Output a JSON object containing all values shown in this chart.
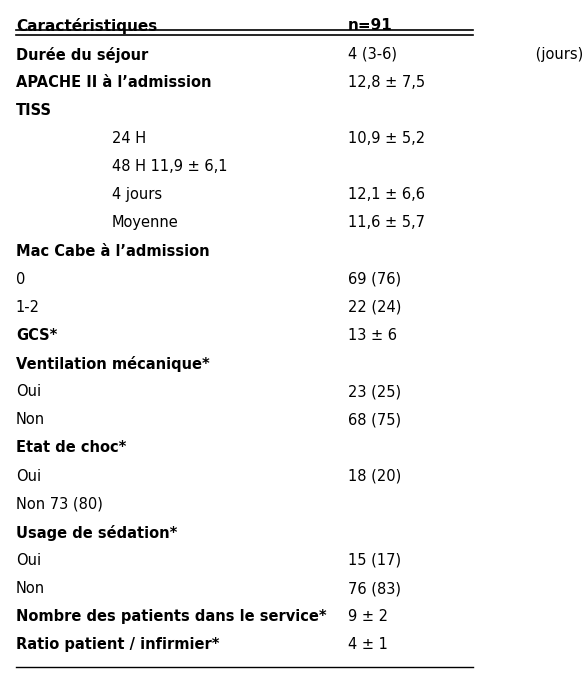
{
  "title_left": "Caractéristiques",
  "title_right": "n=91",
  "rows": [
    {
      "left": "Durée du séjour",
      "left_suffix": " (jours)",
      "right": "4 (3-6)",
      "bold_left": true,
      "indent": 0
    },
    {
      "left": "APACHE II à l’admission",
      "left_suffix": "",
      "right": "12,8 ± 7,5",
      "bold_left": true,
      "indent": 0
    },
    {
      "left": "TISS",
      "left_suffix": "",
      "right": "",
      "bold_left": true,
      "indent": 0
    },
    {
      "left": "24 H",
      "left_suffix": "",
      "right": "10,9 ± 5,2",
      "bold_left": false,
      "indent": 2
    },
    {
      "left": "48 H 11,9 ± 6,1",
      "left_suffix": "",
      "right": "",
      "bold_left": false,
      "indent": 2
    },
    {
      "left": "4 jours",
      "left_suffix": "",
      "right": "12,1 ± 6,6",
      "bold_left": false,
      "indent": 2
    },
    {
      "left": "Moyenne",
      "left_suffix": "",
      "right": "11,6 ± 5,7",
      "bold_left": false,
      "indent": 2
    },
    {
      "left": "Mac Cabe à l’admission",
      "left_suffix": "",
      "right": "",
      "bold_left": true,
      "indent": 0
    },
    {
      "left": "0",
      "left_suffix": "",
      "right": "69 (76)",
      "bold_left": false,
      "indent": 0
    },
    {
      "left": "1-2",
      "left_suffix": "",
      "right": "22 (24)",
      "bold_left": false,
      "indent": 0
    },
    {
      "left": "GCS*",
      "left_suffix": "",
      "right": "13 ± 6",
      "bold_left": true,
      "indent": 0
    },
    {
      "left": "Ventilation mécanique*",
      "left_suffix": "",
      "right": "",
      "bold_left": true,
      "indent": 0
    },
    {
      "left": "Oui",
      "left_suffix": "",
      "right": "23 (25)",
      "bold_left": false,
      "indent": 0
    },
    {
      "left": "Non",
      "left_suffix": "",
      "right": "68 (75)",
      "bold_left": false,
      "indent": 0
    },
    {
      "left": "Etat de choc*",
      "left_suffix": "",
      "right": "",
      "bold_left": true,
      "indent": 0
    },
    {
      "left": "Oui",
      "left_suffix": "",
      "right": "18 (20)",
      "bold_left": false,
      "indent": 0
    },
    {
      "left": "Non 73 (80)",
      "left_suffix": "",
      "right": "",
      "bold_left": false,
      "indent": 0
    },
    {
      "left": "Usage de sédation*",
      "left_suffix": "",
      "right": "",
      "bold_left": true,
      "indent": 0
    },
    {
      "left": "Oui",
      "left_suffix": "",
      "right": "15 (17)",
      "bold_left": false,
      "indent": 0
    },
    {
      "left": "Non",
      "left_suffix": "",
      "right": "76 (83)",
      "bold_left": false,
      "indent": 0
    },
    {
      "left": "Nombre des patients dans le service*",
      "left_suffix": "",
      "right": "9 ± 2",
      "bold_left": true,
      "indent": 0
    },
    {
      "left": "Ratio patient / infirmier*",
      "left_suffix": "",
      "right": "4 ± 1",
      "bold_left": true,
      "indent": 0
    }
  ],
  "background_color": "#ffffff",
  "text_color": "#000000",
  "font_size": 10.5,
  "header_font_size": 11
}
